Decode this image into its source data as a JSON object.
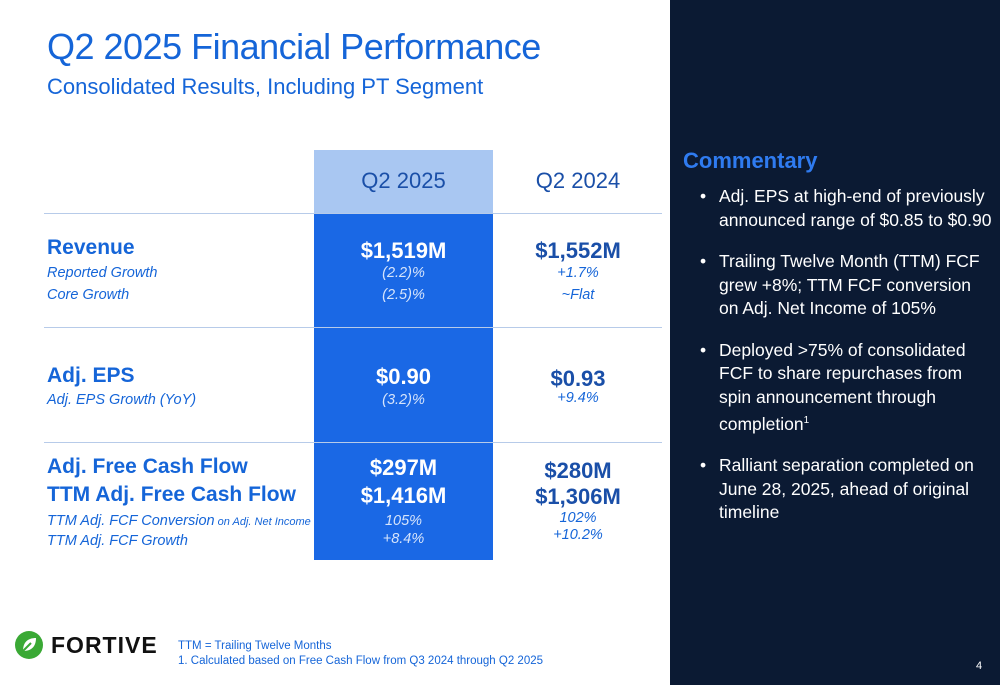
{
  "header": {
    "title": "Q2 2025 Financial Performance",
    "subtitle": "Consolidated Results, Including PT Segment"
  },
  "table": {
    "columns": [
      "Q2 2025",
      "Q2 2024"
    ],
    "revenue": {
      "label": "Revenue",
      "sub1": "Reported Growth",
      "sub2": "Core Growth",
      "q2_2025": {
        "value": "$1,519M",
        "reported": "(2.2)%",
        "core": "(2.5)%"
      },
      "q2_2024": {
        "value": "$1,552M",
        "reported": "+1.7%",
        "core": "~Flat"
      }
    },
    "eps": {
      "label": "Adj. EPS",
      "sub1": "Adj. EPS Growth (YoY)",
      "q2_2025": {
        "value": "$0.90",
        "growth": "(3.2)%"
      },
      "q2_2024": {
        "value": "$0.93",
        "growth": "+9.4%"
      }
    },
    "fcf": {
      "label1": "Adj. Free Cash Flow",
      "label2": "TTM Adj. Free Cash Flow",
      "sub1_main": "TTM Adj. FCF Conversion",
      "sub1_small": " on Adj. Net Income",
      "sub2": "TTM Adj. FCF Growth",
      "q2_2025": {
        "fcf": "$297M",
        "ttm": "$1,416M",
        "conversion": "105%",
        "growth": "+8.4%"
      },
      "q2_2024": {
        "fcf": "$280M",
        "ttm": "$1,306M",
        "conversion": "102%",
        "growth": "+10.2%"
      }
    }
  },
  "commentary": {
    "title": "Commentary",
    "bullet_char": "•",
    "b1": "Adj. EPS at high-end of previously announced range of $0.85 to $0.90",
    "b2": "Trailing Twelve Month (TTM) FCF grew +8%; TTM FCF conversion on Adj. Net Income of 105%",
    "b3": "Deployed >75% of consolidated FCF to share repurchases from spin announcement through completion",
    "b3_sup": "1",
    "b4": "Ralliant separation completed on June 28, 2025, ahead of original timeline"
  },
  "footer": {
    "logo_text": "FORTIVE",
    "note1": "TTM = Trailing Twelve Months",
    "note2": "1. Calculated based on Free Cash Flow from Q3 2024 through Q2 2025",
    "page": "4"
  },
  "colors": {
    "accent_blue": "#1565d8",
    "column_highlight": "#1a68e5",
    "column_header": "#a9c7f2",
    "panel_navy": "#0b1a33",
    "logo_green": "#3aa935"
  },
  "icons": [
    "fortive-leaf-icon"
  ]
}
